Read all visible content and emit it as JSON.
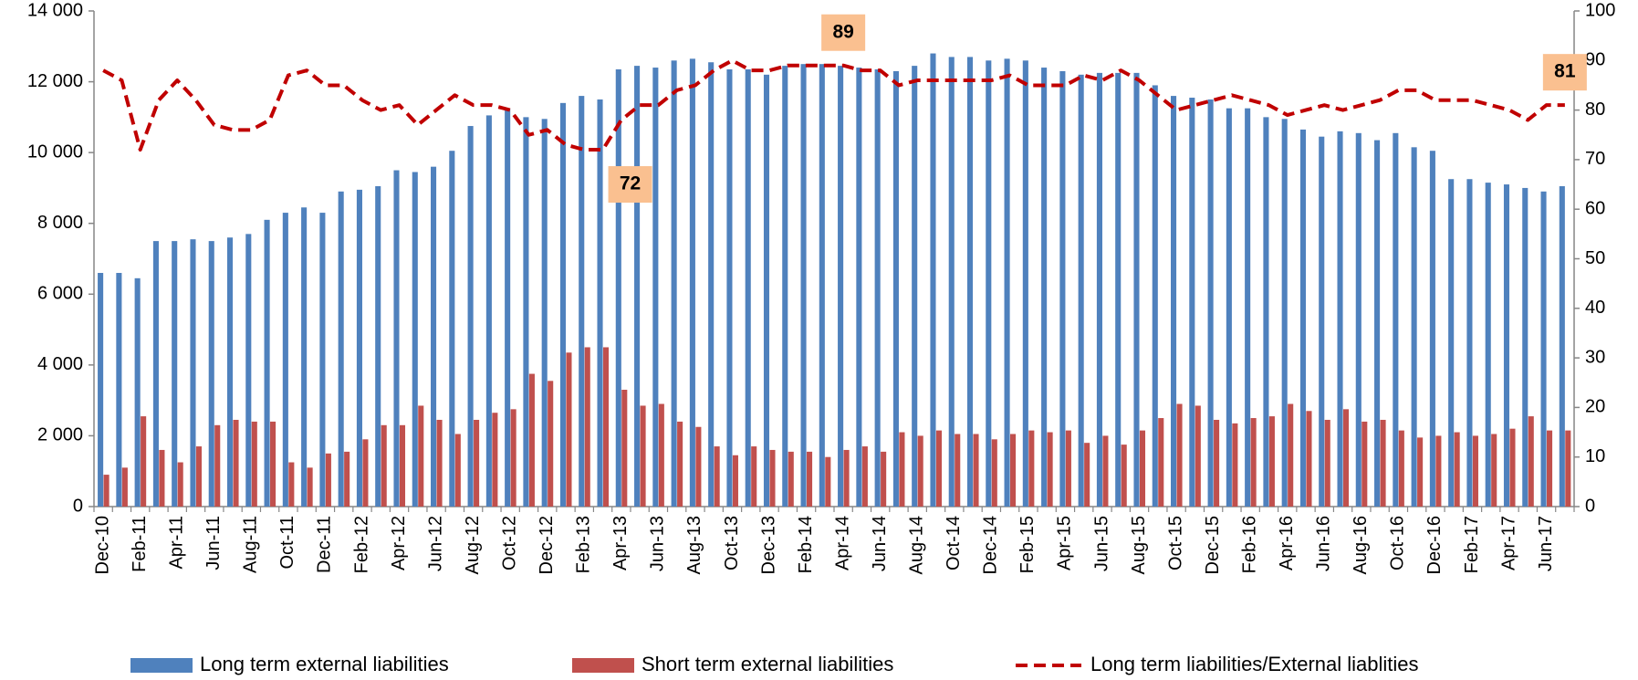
{
  "chart_data": {
    "type": "bar-line",
    "categories": [
      "Dec-10",
      null,
      "Feb-11",
      null,
      "Apr-11",
      null,
      "Jun-11",
      null,
      "Aug-11",
      null,
      "Oct-11",
      null,
      "Dec-11",
      null,
      "Feb-12",
      null,
      "Apr-12",
      null,
      "Jun-12",
      null,
      "Aug-12",
      null,
      "Oct-12",
      null,
      "Dec-12",
      null,
      "Feb-13",
      null,
      "Apr-13",
      null,
      "Jun-13",
      null,
      "Aug-13",
      null,
      "Oct-13",
      null,
      "Dec-13",
      null,
      "Feb-14",
      null,
      "Apr-14",
      null,
      "Jun-14",
      null,
      "Aug-14",
      null,
      "Oct-14",
      null,
      "Dec-14",
      null,
      "Feb-15",
      null,
      "Apr-15",
      null,
      "Jun-15",
      null,
      "Aug-15",
      null,
      "Oct-15",
      null,
      "Dec-15",
      null,
      "Feb-16",
      null,
      "Apr-16",
      null,
      "Jun-16",
      null,
      "Aug-16",
      null,
      "Oct-16",
      null,
      "Dec-16",
      null,
      "Feb-17",
      null,
      "Apr-17",
      null,
      "Jun-17",
      null
    ],
    "series": [
      {
        "name": "Long term external liabilities",
        "color": "#4f81bd",
        "mark": "bar",
        "values": [
          6600,
          6600,
          6450,
          7500,
          7500,
          7550,
          7500,
          7600,
          7700,
          8100,
          8300,
          8450,
          8300,
          8900,
          8950,
          9050,
          9500,
          9450,
          9600,
          10050,
          10750,
          11050,
          11250,
          11000,
          10950,
          11400,
          11600,
          11500,
          12350,
          12450,
          12400,
          12600,
          12650,
          12550,
          12350,
          12350,
          12200,
          12450,
          12500,
          12500,
          12450,
          12400,
          12350,
          12300,
          12450,
          12800,
          12700,
          12700,
          12600,
          12650,
          12600,
          12400,
          12300,
          12200,
          12250,
          12250,
          12250,
          11900,
          11600,
          11550,
          11500,
          11250,
          11250,
          11000,
          10950,
          10650,
          10450,
          10600,
          10550,
          10350,
          10550,
          10150,
          10050,
          9250,
          9250,
          9150,
          9100,
          9000,
          8900,
          9050
        ]
      },
      {
        "name": "Short term external liabilities",
        "color": "#c0504d",
        "mark": "bar",
        "values": [
          900,
          1100,
          2550,
          1600,
          1250,
          1700,
          2300,
          2450,
          2400,
          2400,
          1250,
          1100,
          1500,
          1550,
          1900,
          2300,
          2300,
          2850,
          2450,
          2050,
          2450,
          2650,
          2750,
          3750,
          3550,
          4350,
          4500,
          4500,
          3300,
          2850,
          2900,
          2400,
          2250,
          1700,
          1450,
          1700,
          1600,
          1550,
          1550,
          1400,
          1600,
          1700,
          1550,
          2100,
          2000,
          2150,
          2050,
          2050,
          1900,
          2050,
          2150,
          2100,
          2150,
          1800,
          2000,
          1750,
          2150,
          2500,
          2900,
          2850,
          2450,
          2350,
          2500,
          2550,
          2900,
          2700,
          2450,
          2750,
          2400,
          2450,
          2150,
          1950,
          2000,
          2100,
          2000,
          2050,
          2200,
          2550,
          2150,
          2150
        ]
      },
      {
        "name": "Long term liabilities/External liablities",
        "color": "#c00000",
        "mark": "line",
        "axis": "y2",
        "values": [
          88,
          86,
          72,
          82,
          86,
          82,
          77,
          76,
          76,
          78,
          87,
          88,
          85,
          85,
          82,
          80,
          81,
          77,
          80,
          83,
          81,
          81,
          80,
          75,
          76,
          73,
          72,
          72,
          78,
          81,
          81,
          84,
          85,
          88,
          90,
          88,
          88,
          89,
          89,
          89,
          89,
          88,
          88,
          85,
          86,
          86,
          86,
          86,
          86,
          87,
          85,
          85,
          85,
          87,
          86,
          88,
          86,
          83,
          80,
          81,
          82,
          83,
          82,
          81,
          79,
          80,
          81,
          80,
          81,
          82,
          84,
          84,
          82,
          82,
          82,
          81,
          80,
          78,
          81,
          81
        ],
        "value_labels": [
          null,
          null,
          null,
          null,
          null,
          null,
          null,
          null,
          null,
          null,
          null,
          null,
          null,
          null,
          null,
          null,
          null,
          null,
          null,
          null,
          null,
          null,
          null,
          null,
          null,
          null,
          null,
          "72",
          null,
          null,
          null,
          null,
          null,
          null,
          null,
          null,
          null,
          null,
          null,
          null,
          "89",
          null,
          null,
          null,
          null,
          null,
          null,
          null,
          null,
          null,
          null,
          null,
          null,
          null,
          null,
          null,
          null,
          null,
          null,
          null,
          null,
          null,
          null,
          null,
          null,
          null,
          null,
          null,
          null,
          null,
          null,
          null,
          null,
          null,
          null,
          null,
          null,
          null,
          null,
          "81"
        ]
      }
    ],
    "ylim": [
      0,
      14000
    ],
    "yticks": [
      0,
      {
        "value": 2000,
        "label": "2 000"
      },
      {
        "value": 4000,
        "label": "4 000"
      },
      {
        "value": 6000,
        "label": "6 000"
      },
      {
        "value": 8000,
        "label": "8 000"
      },
      {
        "value": 10000,
        "label": "10 000"
      },
      {
        "value": 12000,
        "label": "12 000"
      },
      {
        "value": 14000,
        "label": "14 000"
      }
    ],
    "y2lim": [
      0,
      100
    ],
    "y2ticks": [
      0,
      10,
      20,
      30,
      40,
      50,
      60,
      70,
      80,
      90,
      100
    ],
    "grid": false,
    "legend": "bottom"
  }
}
